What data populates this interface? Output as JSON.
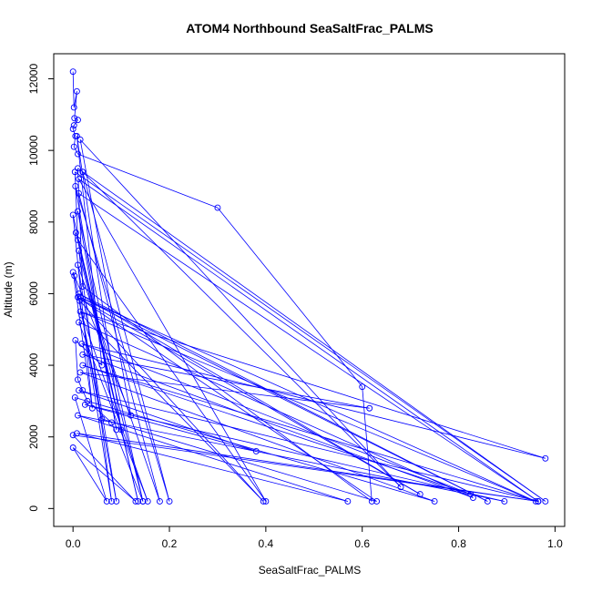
{
  "chart_data": {
    "type": "line",
    "title": "ATOM4 Northbound SeaSaltFrac_PALMS",
    "xlabel": "SeaSaltFrac_PALMS",
    "ylabel": "Altitude (m)",
    "xlim": [
      -0.04,
      1.02
    ],
    "ylim": [
      -500,
      12700
    ],
    "xticks": [
      0.0,
      0.2,
      0.4,
      0.6,
      0.8,
      1.0
    ],
    "xtick_labels": [
      "0.0",
      "0.2",
      "0.4",
      "0.6",
      "0.8",
      "1.0"
    ],
    "yticks": [
      0,
      2000,
      4000,
      6000,
      8000,
      10000,
      12000
    ],
    "ytick_labels": [
      "0",
      "2000",
      "4000",
      "6000",
      "8000",
      "10000",
      "12000"
    ],
    "grid": false,
    "color": "#0000ff",
    "series": [
      {
        "points": [
          [
            0.0,
            12200
          ],
          [
            0.002,
            11200
          ],
          [
            0.008,
            11650
          ],
          [
            0.003,
            10900
          ],
          [
            0.01,
            10850
          ],
          [
            0.002,
            10700
          ],
          [
            0.0,
            10600
          ],
          [
            0.005,
            10400
          ],
          [
            0.002,
            10100
          ],
          [
            0.01,
            9900
          ],
          [
            0.3,
            8400
          ],
          [
            0.6,
            3400
          ],
          [
            0.62,
            200
          ],
          [
            0.02,
            6200
          ],
          [
            0.01,
            9500
          ],
          [
            0.98,
            200
          ],
          [
            0.004,
            9400
          ],
          [
            0.01,
            7500
          ],
          [
            0.4,
            200
          ],
          [
            0.012,
            9200
          ],
          [
            0.965,
            200
          ],
          [
            0.012,
            8800
          ],
          [
            0.18,
            200
          ],
          [
            0.01,
            6800
          ],
          [
            0.09,
            200
          ],
          [
            0.003,
            6500
          ],
          [
            0.06,
            2500
          ],
          [
            0.63,
            200
          ],
          [
            0.01,
            5900
          ],
          [
            0.72,
            400
          ],
          [
            0.012,
            6000
          ],
          [
            0.86,
            200
          ],
          [
            0.015,
            5900
          ],
          [
            0.96,
            200
          ],
          [
            0.015,
            5500
          ],
          [
            0.98,
            1400
          ],
          [
            0.018,
            4600
          ],
          [
            0.825,
            400
          ],
          [
            0.02,
            4000
          ],
          [
            0.965,
            200
          ],
          [
            0.012,
            3300
          ],
          [
            0.38,
            1600
          ],
          [
            0.025,
            2900
          ],
          [
            0.895,
            200
          ],
          [
            0.01,
            2600
          ],
          [
            0.57,
            200
          ],
          [
            0.008,
            2100
          ],
          [
            0.965,
            200
          ],
          [
            0.0,
            2050
          ],
          [
            0.13,
            200
          ],
          [
            0.0,
            1700
          ],
          [
            0.07,
            200
          ],
          [
            0.004,
            3100
          ],
          [
            0.75,
            200
          ],
          [
            0.015,
            3800
          ],
          [
            0.615,
            2800
          ],
          [
            0.02,
            4300
          ],
          [
            0.83,
            300
          ],
          [
            0.012,
            5200
          ],
          [
            0.155,
            200
          ],
          [
            0.018,
            5400
          ],
          [
            0.395,
            200
          ],
          [
            0.014,
            5800
          ],
          [
            0.08,
            200
          ],
          [
            0.012,
            7200
          ],
          [
            0.135,
            200
          ],
          [
            0.006,
            7700
          ],
          [
            0.145,
            200
          ],
          [
            0.01,
            8300
          ],
          [
            0.09,
            2200
          ],
          [
            0.005,
            9000
          ],
          [
            0.2,
            200
          ],
          [
            0.02,
            9400
          ],
          [
            0.68,
            600
          ],
          [
            0.015,
            10300
          ],
          [
            0.12,
            2600
          ],
          [
            0.0,
            6600
          ],
          [
            0.04,
            2800
          ],
          [
            0.0,
            8200
          ],
          [
            0.1,
            2200
          ],
          [
            0.008,
            10400
          ],
          [
            0.06,
            4000
          ],
          [
            0.005,
            4700
          ],
          [
            0.01,
            3600
          ],
          [
            0.02,
            3300
          ],
          [
            0.03,
            3000
          ],
          [
            0.08,
            2400
          ],
          [
            0.145,
            200
          ]
        ]
      }
    ]
  }
}
